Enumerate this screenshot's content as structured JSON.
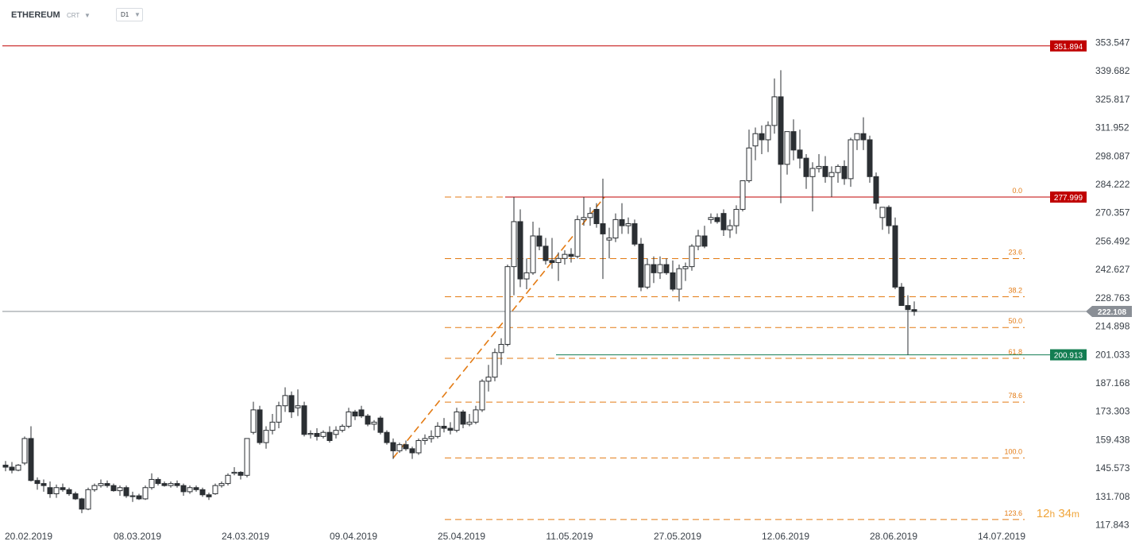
{
  "toolbar": {
    "symbol": "ETHEREUM",
    "chart_type": "CRT",
    "timeframe": "D1"
  },
  "timer": {
    "hours": "12",
    "hours_unit": "h",
    "minutes": "34",
    "minutes_unit": "m"
  },
  "colors": {
    "bull_body": "#ffffff",
    "bear_body": "#2b2f33",
    "wick": "#2b2f33",
    "fib": "#e37b14",
    "resistance": "#c00000",
    "support": "#137d52",
    "current": "#8a8f96"
  },
  "chart_data": {
    "type": "candlestick",
    "title": "",
    "xlabel": "",
    "ylabel": "",
    "ylim": [
      115.5,
      362.5
    ],
    "y_ticks": [
      "353.547",
      "339.682",
      "325.817",
      "311.952",
      "298.087",
      "284.222",
      "270.357",
      "256.492",
      "242.627",
      "228.763",
      "214.898",
      "201.033",
      "187.168",
      "173.303",
      "159.438",
      "145.573",
      "131.708",
      "117.843"
    ],
    "x_ticks": [
      "20.02.2019",
      "08.03.2019",
      "24.03.2019",
      "09.04.2019",
      "25.04.2019",
      "11.05.2019",
      "27.05.2019",
      "12.06.2019",
      "28.06.2019",
      "14.07.2019"
    ],
    "first_date": "2019-02-20",
    "candles": [
      [
        147.0,
        149.0,
        144.0,
        146.0
      ],
      [
        146.0,
        148.5,
        143.0,
        144.5
      ],
      [
        144.5,
        147.5,
        144.0,
        147.0
      ],
      [
        148.0,
        161.0,
        147.0,
        160.0
      ],
      [
        160.0,
        166.0,
        139.0,
        139.5
      ],
      [
        139.5,
        141.0,
        135.0,
        138.0
      ],
      [
        138.0,
        140.0,
        134.0,
        137.0
      ],
      [
        136.0,
        139.0,
        131.0,
        133.0
      ],
      [
        133.0,
        137.5,
        131.0,
        136.0
      ],
      [
        136.0,
        138.0,
        134.0,
        135.0
      ],
      [
        135.0,
        136.0,
        132.0,
        133.0
      ],
      [
        133.0,
        134.0,
        130.0,
        130.5
      ],
      [
        130.5,
        131.0,
        123.5,
        125.5
      ],
      [
        125.5,
        136.0,
        125.0,
        135.0
      ],
      [
        135.0,
        138.0,
        134.0,
        137.0
      ],
      [
        137.0,
        140.0,
        136.0,
        138.0
      ],
      [
        138.0,
        139.5,
        136.0,
        137.0
      ],
      [
        137.0,
        138.0,
        134.0,
        134.5
      ],
      [
        134.5,
        137.0,
        132.0,
        136.0
      ],
      [
        136.0,
        137.0,
        131.0,
        132.0
      ],
      [
        132.0,
        134.0,
        129.0,
        132.0
      ],
      [
        132.0,
        133.0,
        130.0,
        130.5
      ],
      [
        130.5,
        137.0,
        130.0,
        136.0
      ],
      [
        136.0,
        143.0,
        135.0,
        140.0
      ],
      [
        140.0,
        141.0,
        137.0,
        138.0
      ],
      [
        138.0,
        139.0,
        136.5,
        137.0
      ],
      [
        137.0,
        139.0,
        136.0,
        138.0
      ],
      [
        138.0,
        139.5,
        136.0,
        137.0
      ],
      [
        137.0,
        138.0,
        132.0,
        134.0
      ],
      [
        134.0,
        137.0,
        133.0,
        136.0
      ],
      [
        136.0,
        137.0,
        134.0,
        135.0
      ],
      [
        135.0,
        136.0,
        131.5,
        132.5
      ],
      [
        132.5,
        133.5,
        130.0,
        131.5
      ],
      [
        133.0,
        138.0,
        132.5,
        137.0
      ],
      [
        137.0,
        139.0,
        136.0,
        138.0
      ],
      [
        138.0,
        143.0,
        137.0,
        142.0
      ],
      [
        143.0,
        146.0,
        142.0,
        143.5
      ],
      [
        143.5,
        144.0,
        140.0,
        142.0
      ],
      [
        142.0,
        160.0,
        141.0,
        160.0
      ],
      [
        163.0,
        178.0,
        162.0,
        174.0
      ],
      [
        174.0,
        176.0,
        157.0,
        158.0
      ],
      [
        158.0,
        166.0,
        155.0,
        164.0
      ],
      [
        164.0,
        172.0,
        162.0,
        168.0
      ],
      [
        168.0,
        178.0,
        165.0,
        176.0
      ],
      [
        176.0,
        185.0,
        173.0,
        181.0
      ],
      [
        181.0,
        183.0,
        170.0,
        173.0
      ],
      [
        175.0,
        184.0,
        171.0,
        176.0
      ],
      [
        176.0,
        178.0,
        161.0,
        162.0
      ],
      [
        162.0,
        164.0,
        160.0,
        162.5
      ],
      [
        162.5,
        165.0,
        159.0,
        161.0
      ],
      [
        161.0,
        164.0,
        160.0,
        163.0
      ],
      [
        163.0,
        166.0,
        158.0,
        159.0
      ],
      [
        162.0,
        166.0,
        160.0,
        164.0
      ],
      [
        164.0,
        167.0,
        163.0,
        166.0
      ],
      [
        166.0,
        175.0,
        165.0,
        173.0
      ],
      [
        173.0,
        174.0,
        169.0,
        171.0
      ],
      [
        174.0,
        176.0,
        170.0,
        171.0
      ],
      [
        171.0,
        172.0,
        166.0,
        167.0
      ],
      [
        167.0,
        169.0,
        164.0,
        168.0
      ],
      [
        170.0,
        171.0,
        162.0,
        163.0
      ],
      [
        163.0,
        164.0,
        157.0,
        158.0
      ],
      [
        158.0,
        160.0,
        150.0,
        154.0
      ],
      [
        154.0,
        158.0,
        153.0,
        157.0
      ],
      [
        157.0,
        159.0,
        154.0,
        155.0
      ],
      [
        155.0,
        156.0,
        150.0,
        153.0
      ],
      [
        153.0,
        160.0,
        152.0,
        159.0
      ],
      [
        159.0,
        162.0,
        157.0,
        160.0
      ],
      [
        160.0,
        164.0,
        158.0,
        161.0
      ],
      [
        161.0,
        168.0,
        160.0,
        166.0
      ],
      [
        166.0,
        170.0,
        163.0,
        165.0
      ],
      [
        165.0,
        168.0,
        162.0,
        164.0
      ],
      [
        164.0,
        175.0,
        163.0,
        173.0
      ],
      [
        173.0,
        174.0,
        165.0,
        167.0
      ],
      [
        167.0,
        172.0,
        166.0,
        168.0
      ],
      [
        168.0,
        176.0,
        167.0,
        174.0
      ],
      [
        174.0,
        189.0,
        173.0,
        188.0
      ],
      [
        188.0,
        196.0,
        183.0,
        190.0
      ],
      [
        190.0,
        204.0,
        188.0,
        202.0
      ],
      [
        202.0,
        209.0,
        196.0,
        206.0
      ],
      [
        206.0,
        245.0,
        205.0,
        244.0
      ],
      [
        244.0,
        278.0,
        230.0,
        266.0
      ],
      [
        266.0,
        272.0,
        234.0,
        238.0
      ],
      [
        238.0,
        248.0,
        233.0,
        241.0
      ],
      [
        241.0,
        266.0,
        240.0,
        259.0
      ],
      [
        259.0,
        263.0,
        252.0,
        254.0
      ],
      [
        254.0,
        258.0,
        245.0,
        247.0
      ],
      [
        247.0,
        258.0,
        243.0,
        246.0
      ],
      [
        246.0,
        251.0,
        237.0,
        248.0
      ],
      [
        248.0,
        252.0,
        245.0,
        250.0
      ],
      [
        250.0,
        253.0,
        246.0,
        249.0
      ],
      [
        249.0,
        269.0,
        248.0,
        267.0
      ],
      [
        267.0,
        278.0,
        264.0,
        268.0
      ],
      [
        268.0,
        273.0,
        264.0,
        270.0
      ],
      [
        272.0,
        275.0,
        263.0,
        265.0
      ],
      [
        265.0,
        287.0,
        238.0,
        260.0
      ],
      [
        257.0,
        263.0,
        248.0,
        258.0
      ],
      [
        258.0,
        270.0,
        256.0,
        267.0
      ],
      [
        267.0,
        275.0,
        260.0,
        264.0
      ],
      [
        264.0,
        268.0,
        260.0,
        265.0
      ],
      [
        265.0,
        267.0,
        254.0,
        255.0
      ],
      [
        255.0,
        258.0,
        232.0,
        234.0
      ],
      [
        234.0,
        248.0,
        233.0,
        245.0
      ],
      [
        245.0,
        249.0,
        236.0,
        241.0
      ],
      [
        241.0,
        249.0,
        238.0,
        245.0
      ],
      [
        245.0,
        248.0,
        240.0,
        241.0
      ],
      [
        241.0,
        247.0,
        232.0,
        233.0
      ],
      [
        233.0,
        245.0,
        227.0,
        243.0
      ],
      [
        243.0,
        246.0,
        237.0,
        244.0
      ],
      [
        244.0,
        255.0,
        242.0,
        254.0
      ],
      [
        254.0,
        262.0,
        252.0,
        259.0
      ],
      [
        259.0,
        264.0,
        253.0,
        254.0
      ],
      [
        267.0,
        270.0,
        265.0,
        268.0
      ],
      [
        268.0,
        270.0,
        265.0,
        266.0
      ],
      [
        270.0,
        272.0,
        259.0,
        262.0
      ],
      [
        262.0,
        267.0,
        258.0,
        264.0
      ],
      [
        264.0,
        274.0,
        260.0,
        272.0
      ],
      [
        272.0,
        285.0,
        271.0,
        286.0
      ],
      [
        286.0,
        311.0,
        285.0,
        302.0
      ],
      [
        303.0,
        312.0,
        296.0,
        309.0
      ],
      [
        309.0,
        313.0,
        299.0,
        306.0
      ],
      [
        306.0,
        315.0,
        300.0,
        313.0
      ],
      [
        313.0,
        336.0,
        309.0,
        327.0
      ],
      [
        327.0,
        340.0,
        275.0,
        294.0
      ],
      [
        294.0,
        308.0,
        289.0,
        310.0
      ],
      [
        310.0,
        316.0,
        296.0,
        301.0
      ],
      [
        301.0,
        311.0,
        292.0,
        297.0
      ],
      [
        297.0,
        299.0,
        282.0,
        288.0
      ],
      [
        288.0,
        295.0,
        271.0,
        292.0
      ],
      [
        292.0,
        299.0,
        290.0,
        293.0
      ],
      [
        293.0,
        298.0,
        285.0,
        288.0
      ],
      [
        288.0,
        293.0,
        278.0,
        290.0
      ],
      [
        290.0,
        294.0,
        285.0,
        293.0
      ],
      [
        293.0,
        296.0,
        284.0,
        287.0
      ],
      [
        287.0,
        307.0,
        283.0,
        306.0
      ],
      [
        306.0,
        309.0,
        301.0,
        309.0
      ],
      [
        309.0,
        317.0,
        301.0,
        306.0
      ],
      [
        306.0,
        308.0,
        285.0,
        288.0
      ],
      [
        288.0,
        290.0,
        272.0,
        275.0
      ],
      [
        268.0,
        272.0,
        262.0,
        273.0
      ],
      [
        273.0,
        274.0,
        260.0,
        264.0
      ],
      [
        264.0,
        268.0,
        233.0,
        234.0
      ],
      [
        234.0,
        236.0,
        226.0,
        225.0
      ],
      [
        225.0,
        230.0,
        200.9,
        223.0
      ],
      [
        223.0,
        227.0,
        220.0,
        222.1
      ]
    ],
    "horizontal_levels": [
      {
        "value": 351.894,
        "label": "351.894",
        "role": "resistance"
      },
      {
        "value": 277.999,
        "label": "277.999",
        "role": "resistance"
      },
      {
        "value": 200.913,
        "label": "200.913",
        "role": "support"
      },
      {
        "value": 222.108,
        "label": "222.108",
        "role": "current"
      }
    ],
    "fibonacci": {
      "high": 277.999,
      "low": 150.5,
      "levels": [
        {
          "ratio": 0.0,
          "label": "0.0"
        },
        {
          "ratio": 0.236,
          "label": "23.6"
        },
        {
          "ratio": 0.382,
          "label": "38.2"
        },
        {
          "ratio": 0.5,
          "label": "50.0"
        },
        {
          "ratio": 0.618,
          "label": "61.8"
        },
        {
          "ratio": 0.786,
          "label": "78.6"
        },
        {
          "ratio": 1.0,
          "label": "100.0"
        },
        {
          "ratio": 1.236,
          "label": "123.6"
        }
      ],
      "start_index": 61,
      "end_index": 93
    },
    "grid": false,
    "legend": "none"
  }
}
